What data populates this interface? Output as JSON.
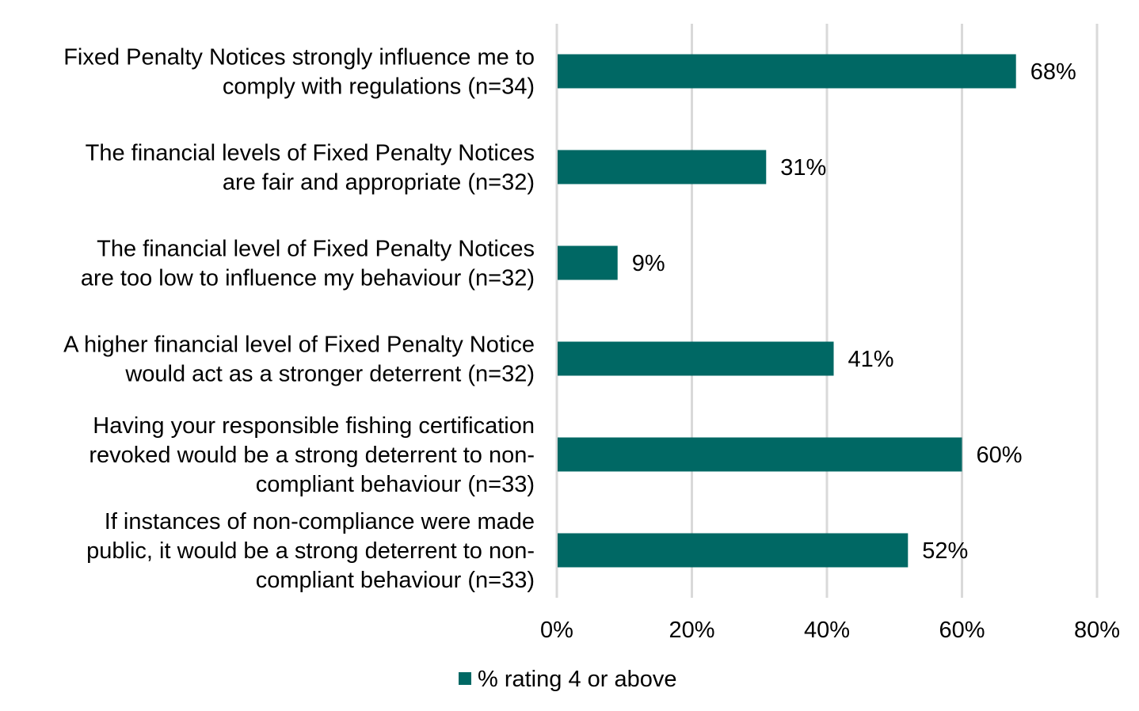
{
  "chart_data": {
    "type": "bar",
    "orientation": "horizontal",
    "categories": [
      [
        "Fixed Penalty Notices strongly influence me to",
        "comply with regulations (n=34)"
      ],
      [
        "The financial levels of Fixed Penalty Notices",
        "are fair and appropriate (n=32)"
      ],
      [
        "The financial level of Fixed Penalty Notices",
        "are too low to influence my behaviour (n=32)"
      ],
      [
        "A higher financial level of Fixed Penalty Notice",
        "would act as a stronger deterrent (n=32)"
      ],
      [
        "Having your responsible fishing certification",
        "revoked would be a strong deterrent to non-",
        "compliant behaviour (n=33)"
      ],
      [
        "If instances of non-compliance were made",
        "public, it would be a strong deterrent to non-",
        "compliant behaviour (n=33)"
      ]
    ],
    "series": [
      {
        "name": "% rating 4 or above",
        "values": [
          68,
          31,
          9,
          41,
          60,
          52
        ],
        "color": "#006864"
      }
    ],
    "data_labels": [
      "68%",
      "31%",
      "9%",
      "41%",
      "60%",
      "52%"
    ],
    "xlim": [
      0,
      80
    ],
    "xticks": [
      0,
      20,
      40,
      60,
      80
    ],
    "xtick_labels": [
      "0%",
      "20%",
      "40%",
      "60%",
      "80%"
    ],
    "grid": "vertical",
    "grid_color": "#d9d9d9",
    "legend": "bottom"
  }
}
